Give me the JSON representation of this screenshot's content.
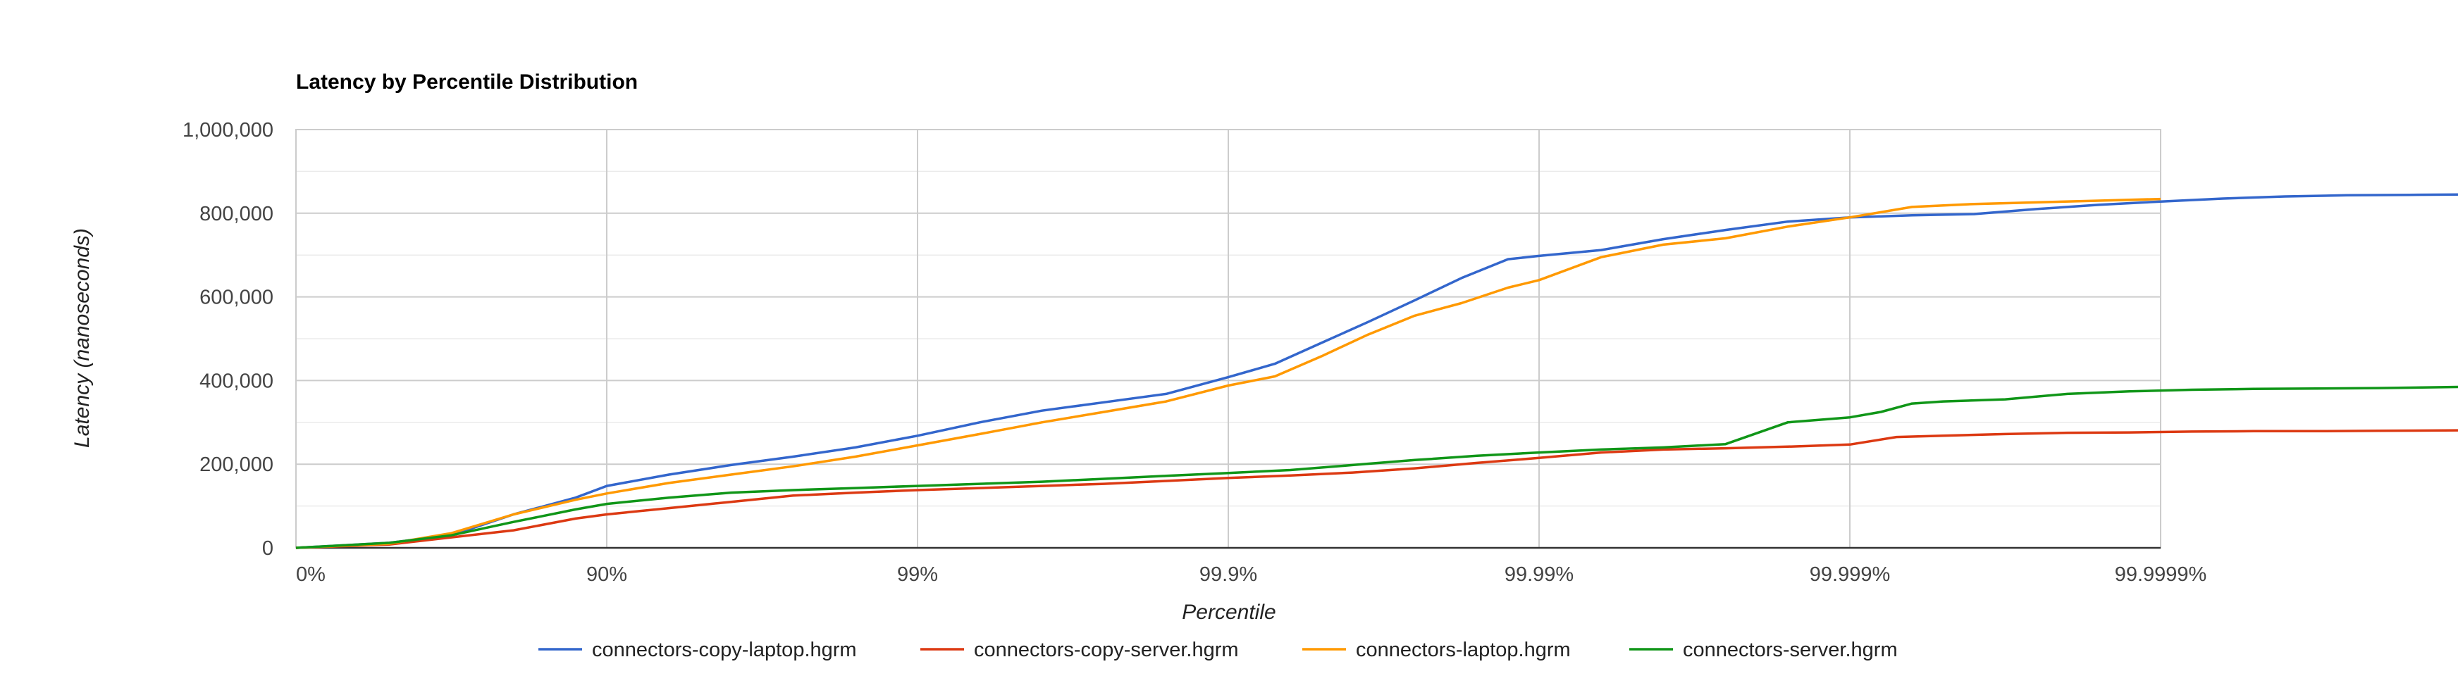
{
  "chart_data": {
    "type": "line",
    "title": "Latency by Percentile Distribution",
    "xlabel": "Percentile",
    "ylabel": "Latency (nanoseconds)",
    "x_scale": "log-nines",
    "x_tick_labels": [
      "0%",
      "90%",
      "99%",
      "99.9%",
      "99.99%",
      "99.999%",
      "99.9999%"
    ],
    "x_range_nines": [
      0,
      6.99
    ],
    "y_tick_labels": [
      "0",
      "200,000",
      "400,000",
      "600,000",
      "800,000",
      "1,000,000"
    ],
    "ylim": [
      0,
      1000000
    ],
    "grid": true,
    "legend_position": "bottom",
    "series": [
      {
        "name": "connectors-copy-laptop.hgrm",
        "color": "#3366cc",
        "x": [
          0,
          0.3,
          0.5,
          0.7,
          0.9,
          1.0,
          1.2,
          1.4,
          1.6,
          1.8,
          2.0,
          2.2,
          2.4,
          2.6,
          2.8,
          3.0,
          3.15,
          3.3,
          3.45,
          3.6,
          3.75,
          3.9,
          4.0,
          4.2,
          4.4,
          4.6,
          4.8,
          5.0,
          5.2,
          5.4,
          5.6,
          5.8,
          6.0,
          6.2,
          6.4,
          6.6,
          6.8,
          6.99
        ],
        "values": [
          0,
          12000,
          30000,
          80000,
          120000,
          148000,
          175000,
          198000,
          218000,
          240000,
          268000,
          300000,
          328000,
          348000,
          368000,
          408000,
          440000,
          490000,
          540000,
          592000,
          645000,
          690000,
          698000,
          712000,
          738000,
          760000,
          780000,
          790000,
          795000,
          798000,
          810000,
          820000,
          828000,
          835000,
          840000,
          843000,
          844000,
          845000
        ]
      },
      {
        "name": "connectors-copy-server.hgrm",
        "color": "#dc3912",
        "x": [
          0,
          0.3,
          0.5,
          0.7,
          0.9,
          1.0,
          1.2,
          1.4,
          1.6,
          1.8,
          2.0,
          2.2,
          2.4,
          2.6,
          2.8,
          3.0,
          3.2,
          3.4,
          3.6,
          3.8,
          4.0,
          4.2,
          4.4,
          4.6,
          4.8,
          5.0,
          5.15,
          5.3,
          5.5,
          5.7,
          5.9,
          6.1,
          6.3,
          6.5,
          6.7,
          6.99
        ],
        "values": [
          0,
          8000,
          25000,
          42000,
          70000,
          80000,
          95000,
          110000,
          125000,
          132000,
          138000,
          143000,
          148000,
          153000,
          160000,
          167000,
          173000,
          180000,
          190000,
          203000,
          215000,
          228000,
          235000,
          238000,
          242000,
          247000,
          265000,
          268000,
          272000,
          275000,
          276000,
          278000,
          279000,
          279000,
          280000,
          281000
        ]
      },
      {
        "name": "connectors-laptop.hgrm",
        "color": "#ff9900",
        "x": [
          0,
          0.3,
          0.5,
          0.7,
          0.9,
          1.0,
          1.2,
          1.4,
          1.6,
          1.8,
          2.0,
          2.2,
          2.4,
          2.6,
          2.8,
          3.0,
          3.15,
          3.3,
          3.45,
          3.6,
          3.75,
          3.9,
          4.0,
          4.2,
          4.4,
          4.6,
          4.8,
          5.0,
          5.2,
          5.4,
          5.6,
          5.8,
          6.0
        ],
        "values": [
          0,
          10000,
          35000,
          80000,
          115000,
          130000,
          155000,
          175000,
          195000,
          218000,
          245000,
          272000,
          300000,
          325000,
          350000,
          388000,
          410000,
          458000,
          510000,
          555000,
          585000,
          622000,
          640000,
          695000,
          725000,
          740000,
          768000,
          790000,
          815000,
          822000,
          826000,
          830000,
          834000
        ]
      },
      {
        "name": "connectors-server.hgrm",
        "color": "#109618",
        "x": [
          0,
          0.3,
          0.5,
          0.7,
          0.9,
          1.0,
          1.2,
          1.4,
          1.6,
          1.8,
          2.0,
          2.2,
          2.4,
          2.6,
          2.8,
          3.0,
          3.2,
          3.4,
          3.6,
          3.8,
          4.0,
          4.2,
          4.4,
          4.6,
          4.8,
          5.0,
          5.1,
          5.2,
          5.3,
          5.5,
          5.7,
          5.9,
          6.1,
          6.3,
          6.5,
          6.7,
          6.99
        ],
        "values": [
          0,
          12000,
          30000,
          62000,
          92000,
          105000,
          120000,
          132000,
          138000,
          143000,
          148000,
          153000,
          158000,
          165000,
          172000,
          179000,
          186000,
          198000,
          210000,
          220000,
          228000,
          235000,
          240000,
          248000,
          300000,
          312000,
          325000,
          345000,
          350000,
          355000,
          368000,
          374000,
          378000,
          380000,
          381000,
          382000,
          385000
        ]
      }
    ]
  }
}
